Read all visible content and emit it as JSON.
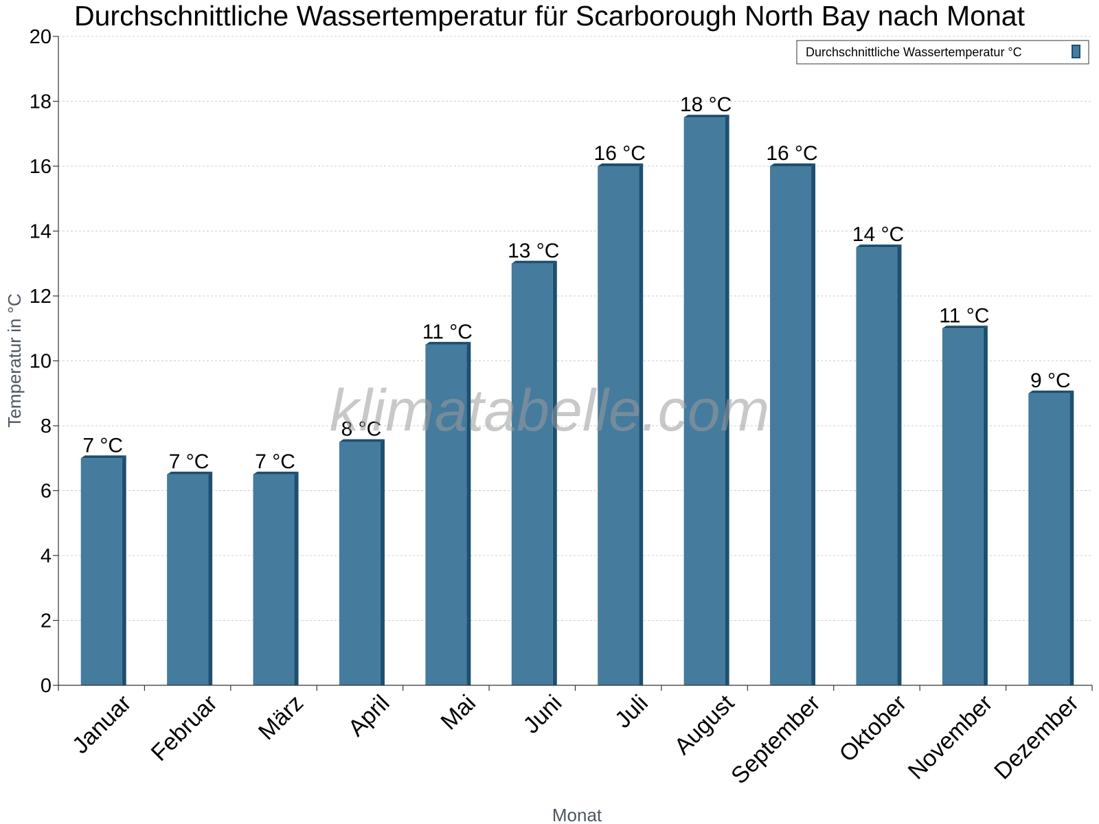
{
  "chart_data": {
    "type": "bar",
    "title": "Durchschnittliche Wassertemperatur für Scarborough North Bay nach Monat",
    "xlabel": "Monat",
    "ylabel": "Temperatur in °C",
    "categories": [
      "Januar",
      "Februar",
      "März",
      "April",
      "Mai",
      "Juni",
      "Juli",
      "August",
      "September",
      "Oktober",
      "November",
      "Dezember"
    ],
    "series": [
      {
        "name": "Durchschnittliche Wassertemperatur °C",
        "values": [
          7,
          6.5,
          6.5,
          7.5,
          10.5,
          13,
          16,
          17.5,
          16,
          13.5,
          11,
          9
        ],
        "labels": [
          "7 °C",
          "7 °C",
          "7 °C",
          "8 °C",
          "11 °C",
          "13 °C",
          "16 °C",
          "18 °C",
          "16 °C",
          "14 °C",
          "11 °C",
          "9 °C"
        ]
      }
    ],
    "ylim": [
      0,
      20
    ],
    "yticks": [
      "0",
      "2",
      "4",
      "6",
      "8",
      "10",
      "12",
      "14",
      "16",
      "18",
      "20"
    ],
    "grid": true,
    "legend_position": "top-right",
    "colors": {
      "bar_face": "#457b9d",
      "bar_side": "#1d4f70",
      "axis": "#333333",
      "grid": "#cccccc"
    }
  },
  "watermark": "klimatabelle.com"
}
